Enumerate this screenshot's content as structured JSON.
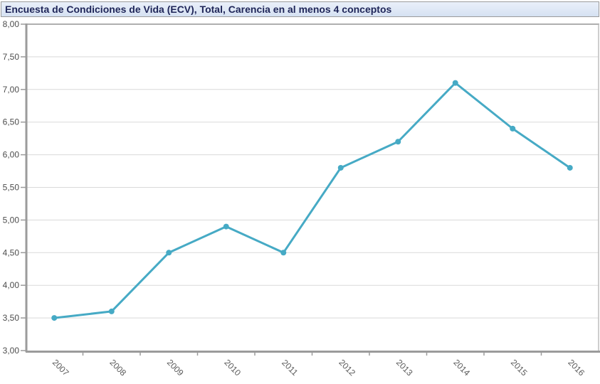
{
  "title": {
    "text": "Encuesta de Condiciones de Vida (ECV), Total, Carencia en al menos 4 conceptos"
  },
  "chart_data": {
    "type": "line",
    "title": "Encuesta de Condiciones de Vida (ECV), Total, Carencia en al menos 4 conceptos",
    "categories": [
      "2007",
      "2008",
      "2009",
      "2010",
      "2011",
      "2012",
      "2013",
      "2014",
      "2015",
      "2016"
    ],
    "series": [
      {
        "name": "Carencia en al menos 4 conceptos",
        "values": [
          3.5,
          3.6,
          4.5,
          4.9,
          4.5,
          5.8,
          6.2,
          7.1,
          6.4,
          5.8
        ]
      }
    ],
    "xlabel": "",
    "ylabel": "",
    "ylim": [
      3.0,
      8.0
    ],
    "y_ticks": [
      {
        "label": "8,00",
        "value": 8.0
      },
      {
        "label": "7,50",
        "value": 7.5
      },
      {
        "label": "7,00",
        "value": 7.0
      },
      {
        "label": "6,50",
        "value": 6.5
      },
      {
        "label": "6,00",
        "value": 6.0
      },
      {
        "label": "5,50",
        "value": 5.5
      },
      {
        "label": "5,00",
        "value": 5.0
      },
      {
        "label": "4,50",
        "value": 4.5
      },
      {
        "label": "4,00",
        "value": 4.0
      },
      {
        "label": "3,50",
        "value": 3.5
      },
      {
        "label": "3,00",
        "value": 3.0
      }
    ],
    "grid": true,
    "legend": false,
    "marker": "circle"
  },
  "colors": {
    "line": "#46aac5",
    "grid": "#d9d9d9",
    "axis": "#9b9b9b",
    "axis_light": "#afafaf",
    "border_right": "#bdbdbd",
    "y_tick_label": "#4d4d4d",
    "x_tick_label": "#595959",
    "title_bg": "#dce6f4",
    "title_text": "#1e2558",
    "title_border": "#9b9b9b"
  }
}
